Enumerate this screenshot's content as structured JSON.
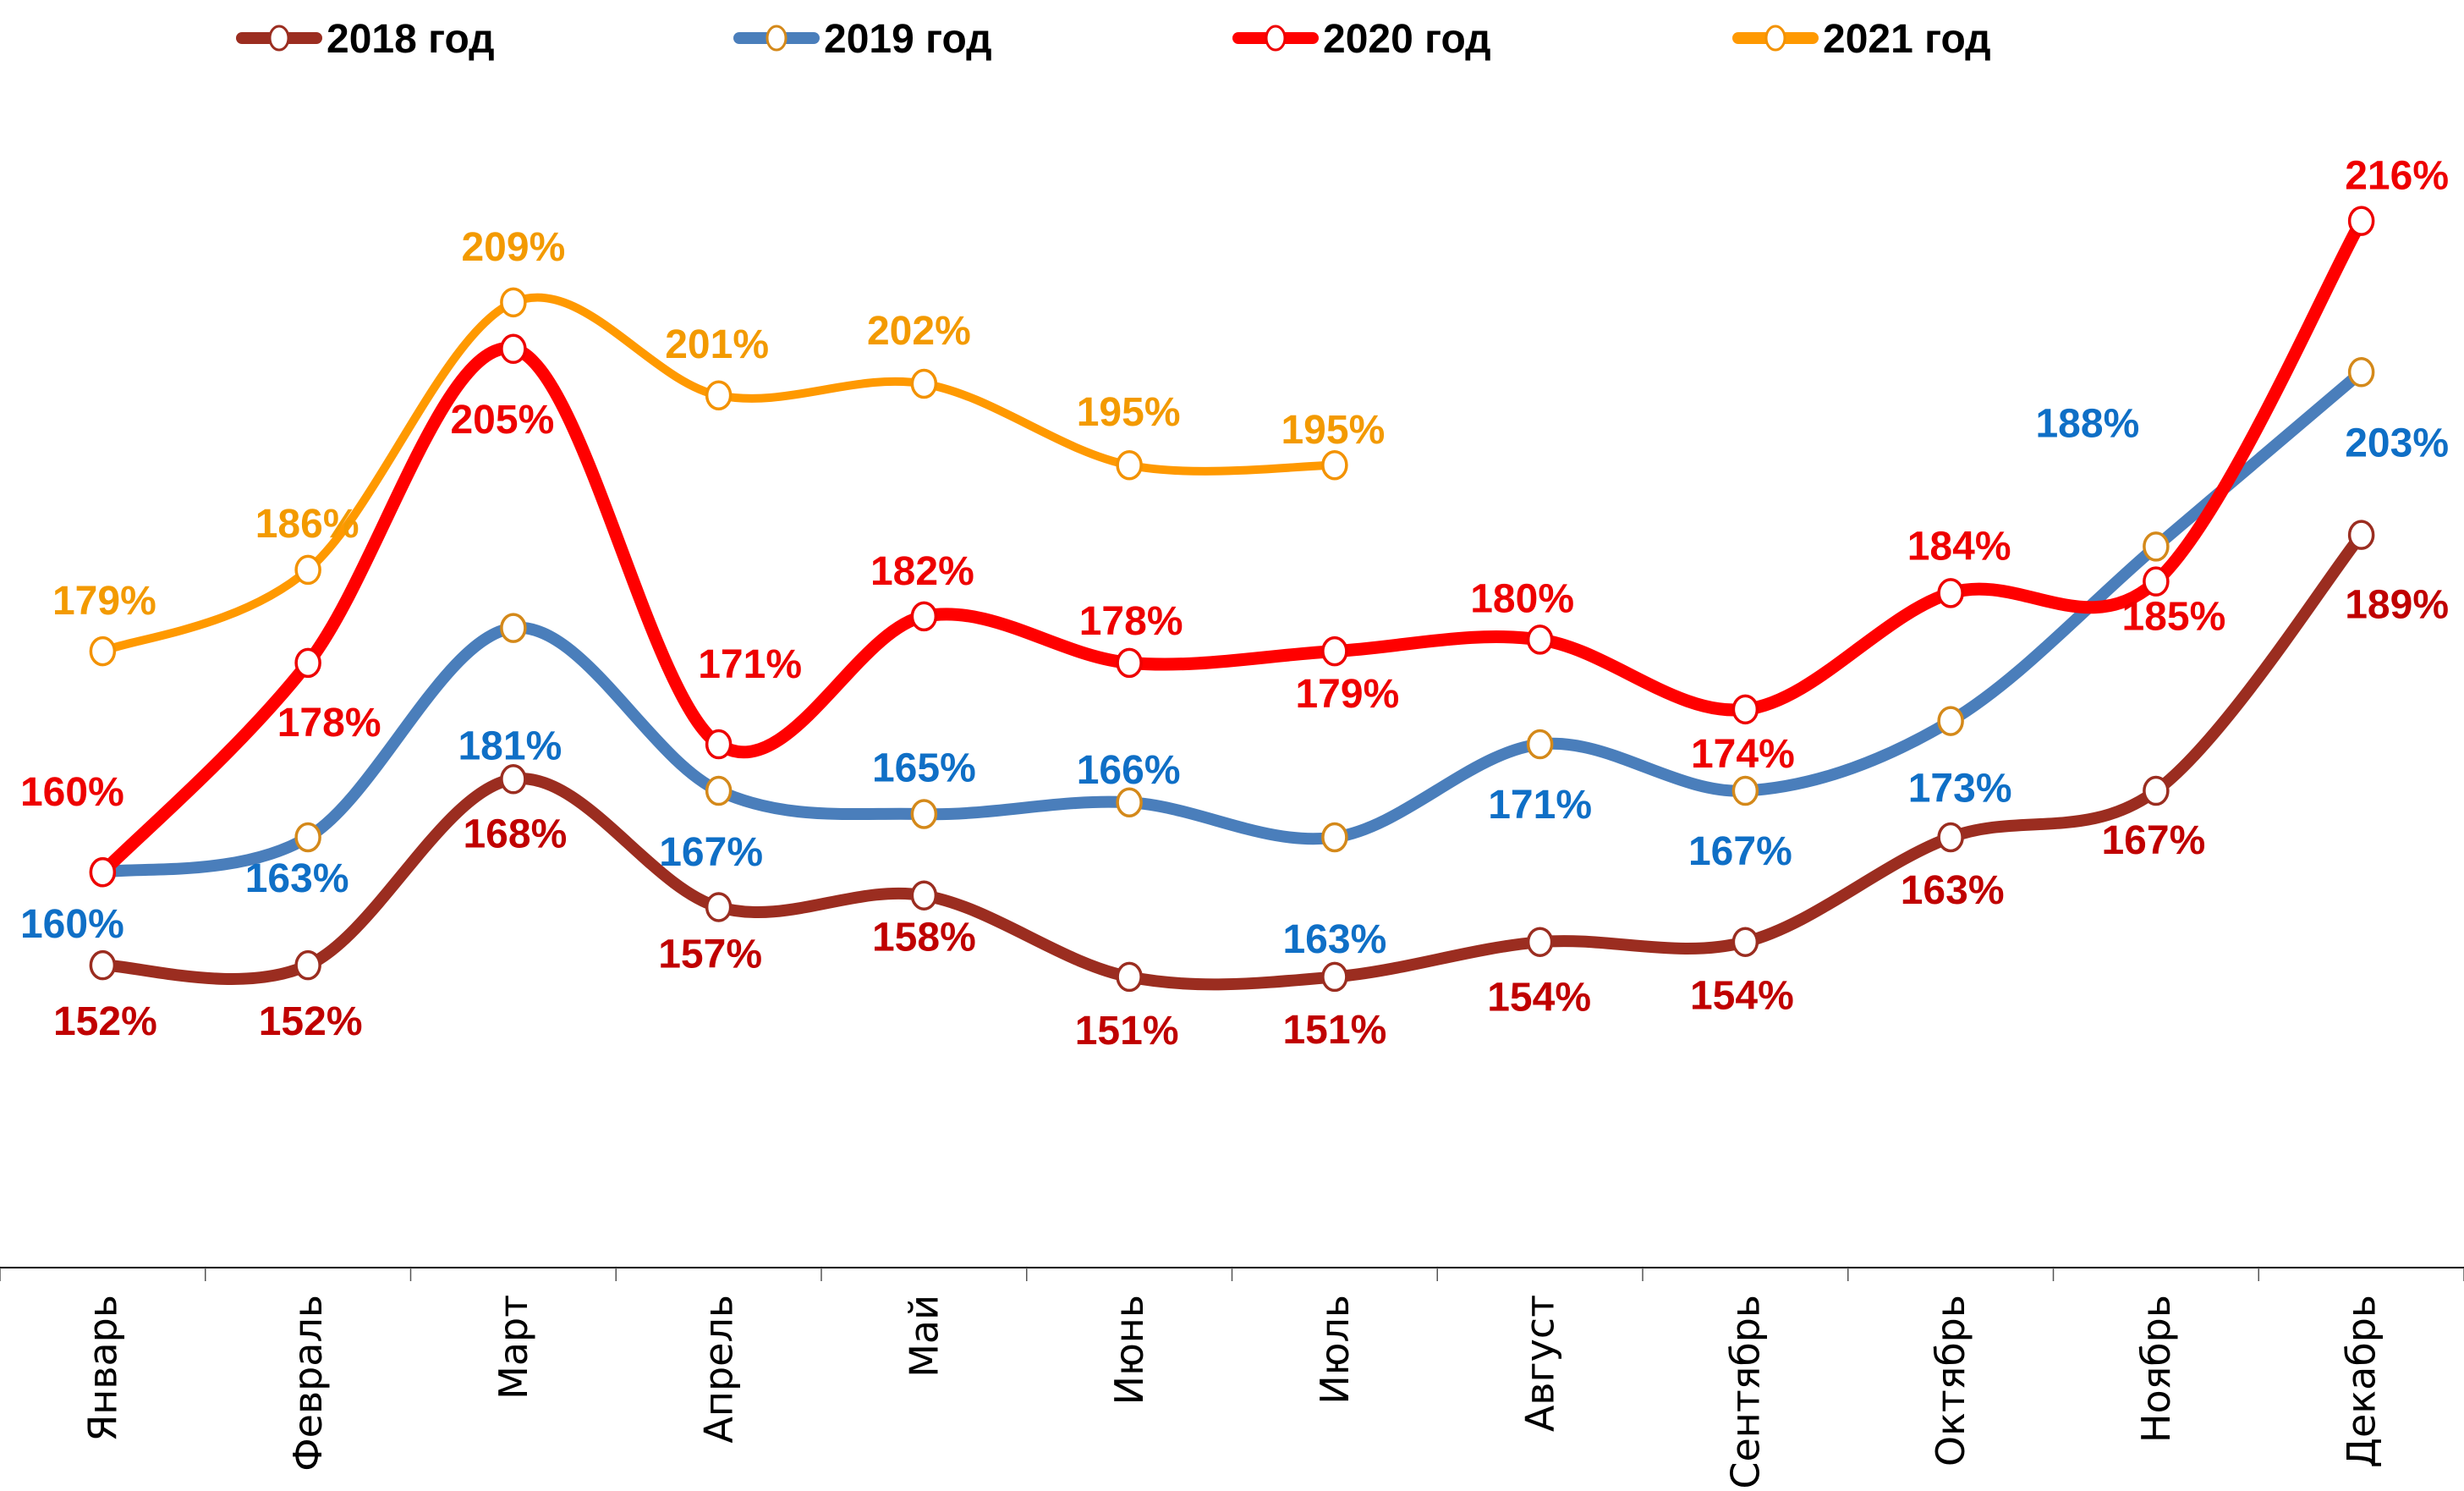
{
  "chart_data": {
    "type": "line",
    "title": "",
    "xlabel": "",
    "ylabel": "",
    "ylim": [
      126,
      235
    ],
    "grid": false,
    "smooth": true,
    "legend_position": "top",
    "value_format": "percent",
    "categories": [
      "Январь",
      "Февраль",
      "Март",
      "Апрель",
      "Май",
      "Июнь",
      "Июль",
      "Август",
      "Сентябрь",
      "Октябрь",
      "Ноябрь",
      "Декабрь"
    ],
    "series": [
      {
        "name": "2018 год",
        "line_color": "#9b2d20",
        "marker_color": "#9b2d20",
        "label_color": "#c00000",
        "values": [
          152,
          152,
          168,
          157,
          158,
          151,
          151,
          154,
          154,
          163,
          167,
          189
        ],
        "labels": [
          "152%",
          "152%",
          "168%",
          "157%",
          "158%",
          "151%",
          "151%",
          "154%",
          "154%",
          "163%",
          "167%",
          "189%"
        ]
      },
      {
        "name": "2019 год",
        "line_color": "#4a7ebb",
        "marker_color": "#d4891a",
        "label_color": "#0f6fc6",
        "values": [
          160,
          163,
          181,
          167,
          165,
          166,
          163,
          171,
          167,
          173,
          188,
          203
        ],
        "labels": [
          "160%",
          "163%",
          "181%",
          "167%",
          "165%",
          "166%",
          "163%",
          "171%",
          "167%",
          "173%",
          "188%",
          "203%"
        ]
      },
      {
        "name": "2020 год",
        "line_color": "#ff0000",
        "marker_color": "#ee0000",
        "label_color": "#ee0000",
        "values": [
          160,
          178,
          205,
          171,
          182,
          178,
          179,
          180,
          174,
          184,
          185,
          216
        ],
        "labels": [
          "160%",
          "178%",
          "205%",
          "171%",
          "182%",
          "178%",
          "179%",
          "180%",
          "174%",
          "184%",
          "185%",
          "216%"
        ]
      },
      {
        "name": "2021 год",
        "line_color": "#ff9900",
        "marker_color": "#f39200",
        "label_color": "#f39a00",
        "values": [
          179,
          186,
          209,
          201,
          202,
          195,
          195
        ],
        "labels": [
          "179%",
          "186%",
          "209%",
          "201%",
          "202%",
          "195%",
          "195%"
        ]
      }
    ]
  }
}
